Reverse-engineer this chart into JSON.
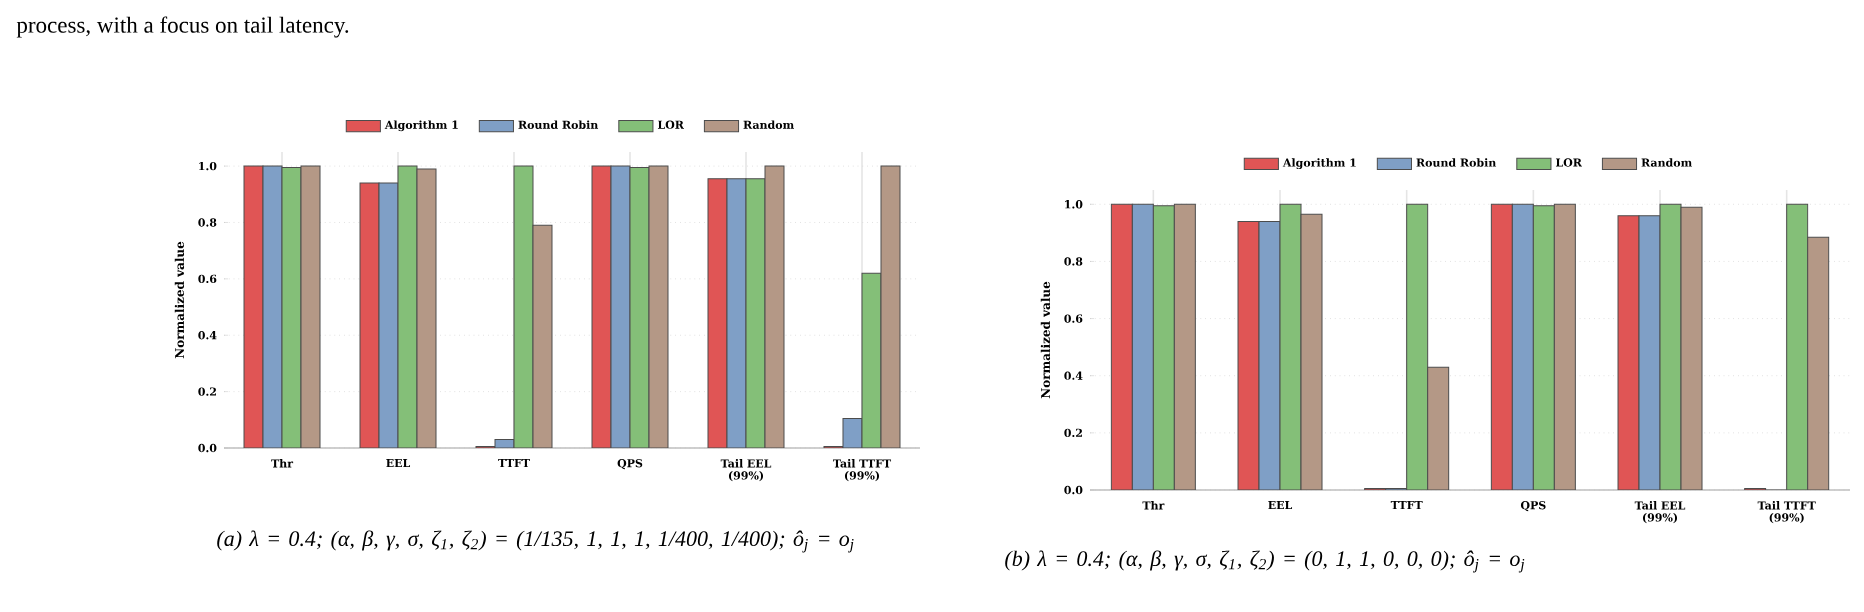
{
  "chart_data": [
    {
      "type": "bar",
      "categories": [
        "Thr",
        "EEL",
        "TTFT",
        "QPS",
        "Tail EEL (99%)",
        "Tail TTFT (99%)"
      ],
      "ylabel": "Normalized value",
      "series": [
        {
          "name": "Algorithm 1",
          "color": "#e05555",
          "values": [
            1.0,
            0.94,
            0.005,
            1.0,
            0.955,
            0.005
          ]
        },
        {
          "name": "Round Robin",
          "color": "#7f9fc6",
          "values": [
            1.0,
            0.94,
            0.03,
            1.0,
            0.955,
            0.105
          ]
        },
        {
          "name": "LOR",
          "color": "#84bf78",
          "values": [
            0.995,
            1.0,
            1.0,
            0.995,
            0.955,
            0.62
          ]
        },
        {
          "name": "Random",
          "color": "#b49886",
          "values": [
            1.0,
            0.99,
            0.79,
            1.0,
            1.0,
            1.0
          ]
        }
      ],
      "ylim": [
        0,
        1.05
      ],
      "yticks": [
        {
          "value": 0,
          "label": "0.0"
        },
        {
          "value": 0.2,
          "label": "0.2"
        },
        {
          "value": 0.4,
          "label": "0.4"
        },
        {
          "value": 0.6,
          "label": "0.6"
        },
        {
          "value": 0.8,
          "label": "0.8"
        },
        {
          "value": 1.0,
          "label": "1.0"
        }
      ],
      "grid": true,
      "legend": "top",
      "annotations": [
        "process, with a focus on tail latency.",
        "(a) λ = 0.4; (α, β, γ, σ, ζ$_{1}$, ζ$_{2}$) = (1/135, 1, 1, 1, 1/400, 1/400); ô$_{j}$ = o$_{j}$"
      ]
    },
    {
      "type": "bar",
      "categories": [
        "Thr",
        "EEL",
        "TTFT",
        "QPS",
        "Tail EEL (99%)",
        "Tail TTFT (99%)"
      ],
      "ylabel": "Normalized value",
      "series": [
        {
          "name": "Algorithm 1",
          "color": "#e05555",
          "values": [
            1.0,
            0.94,
            0.005,
            1.0,
            0.96,
            0.005
          ]
        },
        {
          "name": "Round Robin",
          "color": "#7f9fc6",
          "values": [
            1.0,
            0.94,
            0.005,
            1.0,
            0.96,
            0.0
          ]
        },
        {
          "name": "LOR",
          "color": "#84bf78",
          "values": [
            0.995,
            1.0,
            1.0,
            0.995,
            1.0,
            1.0
          ]
        },
        {
          "name": "Random",
          "color": "#b49886",
          "values": [
            1.0,
            0.965,
            0.43,
            1.0,
            0.99,
            0.885
          ]
        }
      ],
      "ylim": [
        0,
        1.05
      ],
      "yticks": [
        {
          "value": 0,
          "label": "0.0"
        },
        {
          "value": 0.2,
          "label": "0.2"
        },
        {
          "value": 0.4,
          "label": "0.4"
        },
        {
          "value": 0.6,
          "label": "0.6"
        },
        {
          "value": 0.8,
          "label": "0.8"
        },
        {
          "value": 1.0,
          "label": "1.0"
        }
      ],
      "grid": true,
      "legend": "top",
      "annotations": [
        "(b) λ = 0.4; (α, β, γ, σ, ζ$_{1}$, ζ$_{2}$) = (0, 1, 1, 0, 0, 0); ô$_{j}$ = o$_{j}$"
      ]
    }
  ]
}
